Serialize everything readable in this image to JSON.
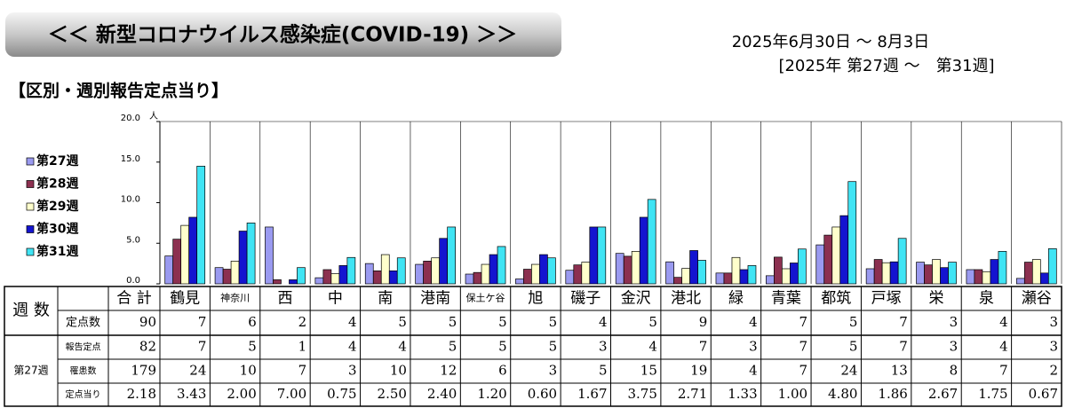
{
  "header": {
    "title": "＜＜ 新型コロナウイルス感染症(COVID-19) ＞＞",
    "period": "2025年6月30日 ～ 8月3日",
    "weeks": "[2025年 第27週 ～　第31週]"
  },
  "section": "【区別・週別報告定点当り】",
  "chart_data": {
    "type": "bar",
    "y_unit": "人",
    "categories": [
      "鶴見",
      "神奈川",
      "西",
      "中",
      "南",
      "港南",
      "保土ケ谷",
      "旭",
      "磯子",
      "金沢",
      "港北",
      "緑",
      "青葉",
      "都筑",
      "戸塚",
      "栄",
      "泉",
      "瀬谷"
    ],
    "series": [
      {
        "name": "第27週",
        "color": "#9a9af0",
        "values": [
          3.43,
          2.0,
          7.0,
          0.75,
          2.5,
          2.4,
          1.2,
          0.6,
          1.67,
          3.75,
          2.71,
          1.33,
          1.0,
          4.8,
          1.86,
          2.67,
          1.75,
          0.67
        ]
      },
      {
        "name": "第28週",
        "color": "#8c3050",
        "values": [
          5.5,
          1.8,
          0.5,
          1.75,
          1.6,
          2.8,
          1.4,
          1.8,
          2.33,
          3.4,
          0.8,
          1.33,
          3.29,
          6.0,
          3.0,
          2.33,
          1.75,
          2.67
        ]
      },
      {
        "name": "第29週",
        "color": "#ffffcc",
        "values": [
          7.2,
          2.8,
          0,
          1.25,
          3.6,
          3.2,
          2.4,
          2.4,
          2.67,
          4.0,
          1.9,
          3.25,
          1.86,
          7.0,
          2.6,
          3.0,
          1.5,
          3.0
        ]
      },
      {
        "name": "第30週",
        "color": "#1414d0",
        "values": [
          8.2,
          6.5,
          0.5,
          2.25,
          1.6,
          5.6,
          3.6,
          3.6,
          7.0,
          8.2,
          4.1,
          1.75,
          2.57,
          8.4,
          2.71,
          2.0,
          3.0,
          1.33
        ]
      },
      {
        "name": "第31週",
        "color": "#40e4f4",
        "values": [
          14.5,
          7.5,
          2.0,
          3.25,
          3.2,
          7.0,
          4.6,
          3.2,
          7.0,
          10.4,
          2.9,
          2.25,
          4.29,
          12.6,
          5.6,
          2.67,
          4.0,
          4.33
        ]
      }
    ],
    "ylim": [
      0,
      20
    ],
    "yticks": [
      {
        "value": 0,
        "label": "0.0"
      },
      {
        "value": 5,
        "label": "5.0"
      },
      {
        "value": 10,
        "label": "10.0"
      },
      {
        "value": 15,
        "label": "15.0"
      },
      {
        "value": 20,
        "label": "20.0"
      }
    ]
  },
  "table": {
    "week_label": "週 数",
    "total_label": "合 計",
    "group_label": "第27週",
    "rows": [
      {
        "label": "定点数",
        "values": [
          90,
          7,
          6,
          2,
          4,
          5,
          5,
          5,
          5,
          4,
          5,
          9,
          4,
          7,
          5,
          7,
          3,
          4,
          3
        ]
      },
      {
        "label": "報告定点",
        "values": [
          82,
          7,
          5,
          1,
          4,
          4,
          5,
          5,
          5,
          3,
          4,
          7,
          3,
          7,
          5,
          7,
          3,
          4,
          3
        ]
      },
      {
        "label": "罹患数",
        "values": [
          179,
          24,
          10,
          7,
          3,
          10,
          12,
          6,
          3,
          5,
          15,
          19,
          4,
          7,
          24,
          13,
          8,
          7,
          2
        ]
      },
      {
        "label": "定点当り",
        "values": [
          "2.18",
          "3.43",
          "2.00",
          "7.00",
          "0.75",
          "2.50",
          "2.40",
          "1.20",
          "0.60",
          "1.67",
          "3.75",
          "2.71",
          "1.33",
          "1.00",
          "4.80",
          "1.86",
          "2.67",
          "1.75",
          "0.67"
        ]
      }
    ]
  }
}
